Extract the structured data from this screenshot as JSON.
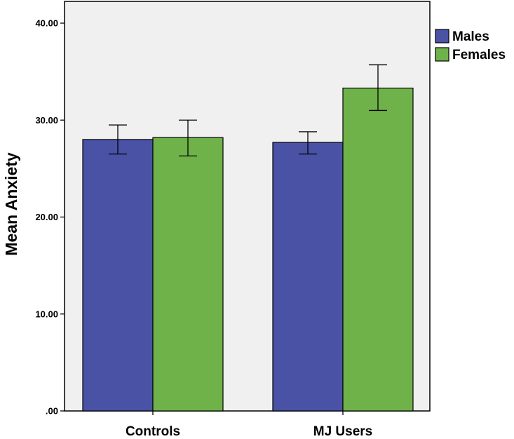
{
  "chart_data": {
    "type": "bar",
    "categories": [
      "Controls",
      "MJ Users"
    ],
    "series": [
      {
        "name": "Males",
        "color": "#4a52a5",
        "values": [
          28.0,
          27.7
        ],
        "error_low": [
          26.5,
          26.5
        ],
        "error_high": [
          29.5,
          28.8
        ]
      },
      {
        "name": "Females",
        "color": "#70b24a",
        "values": [
          28.2,
          33.3
        ],
        "error_low": [
          26.3,
          31.0
        ],
        "error_high": [
          30.0,
          35.7
        ]
      }
    ],
    "ylabel": "Mean Anxiety",
    "ylim": [
      0,
      40
    ],
    "yticks": [
      {
        "value": 0,
        "label": ".00"
      },
      {
        "value": 10,
        "label": "10.00"
      },
      {
        "value": 20,
        "label": "20.00"
      },
      {
        "value": 30,
        "label": "30.00"
      },
      {
        "value": 40,
        "label": "40.00"
      }
    ],
    "legend_position": "right-top",
    "grid": false,
    "plot_background": "#f0f0f0"
  }
}
